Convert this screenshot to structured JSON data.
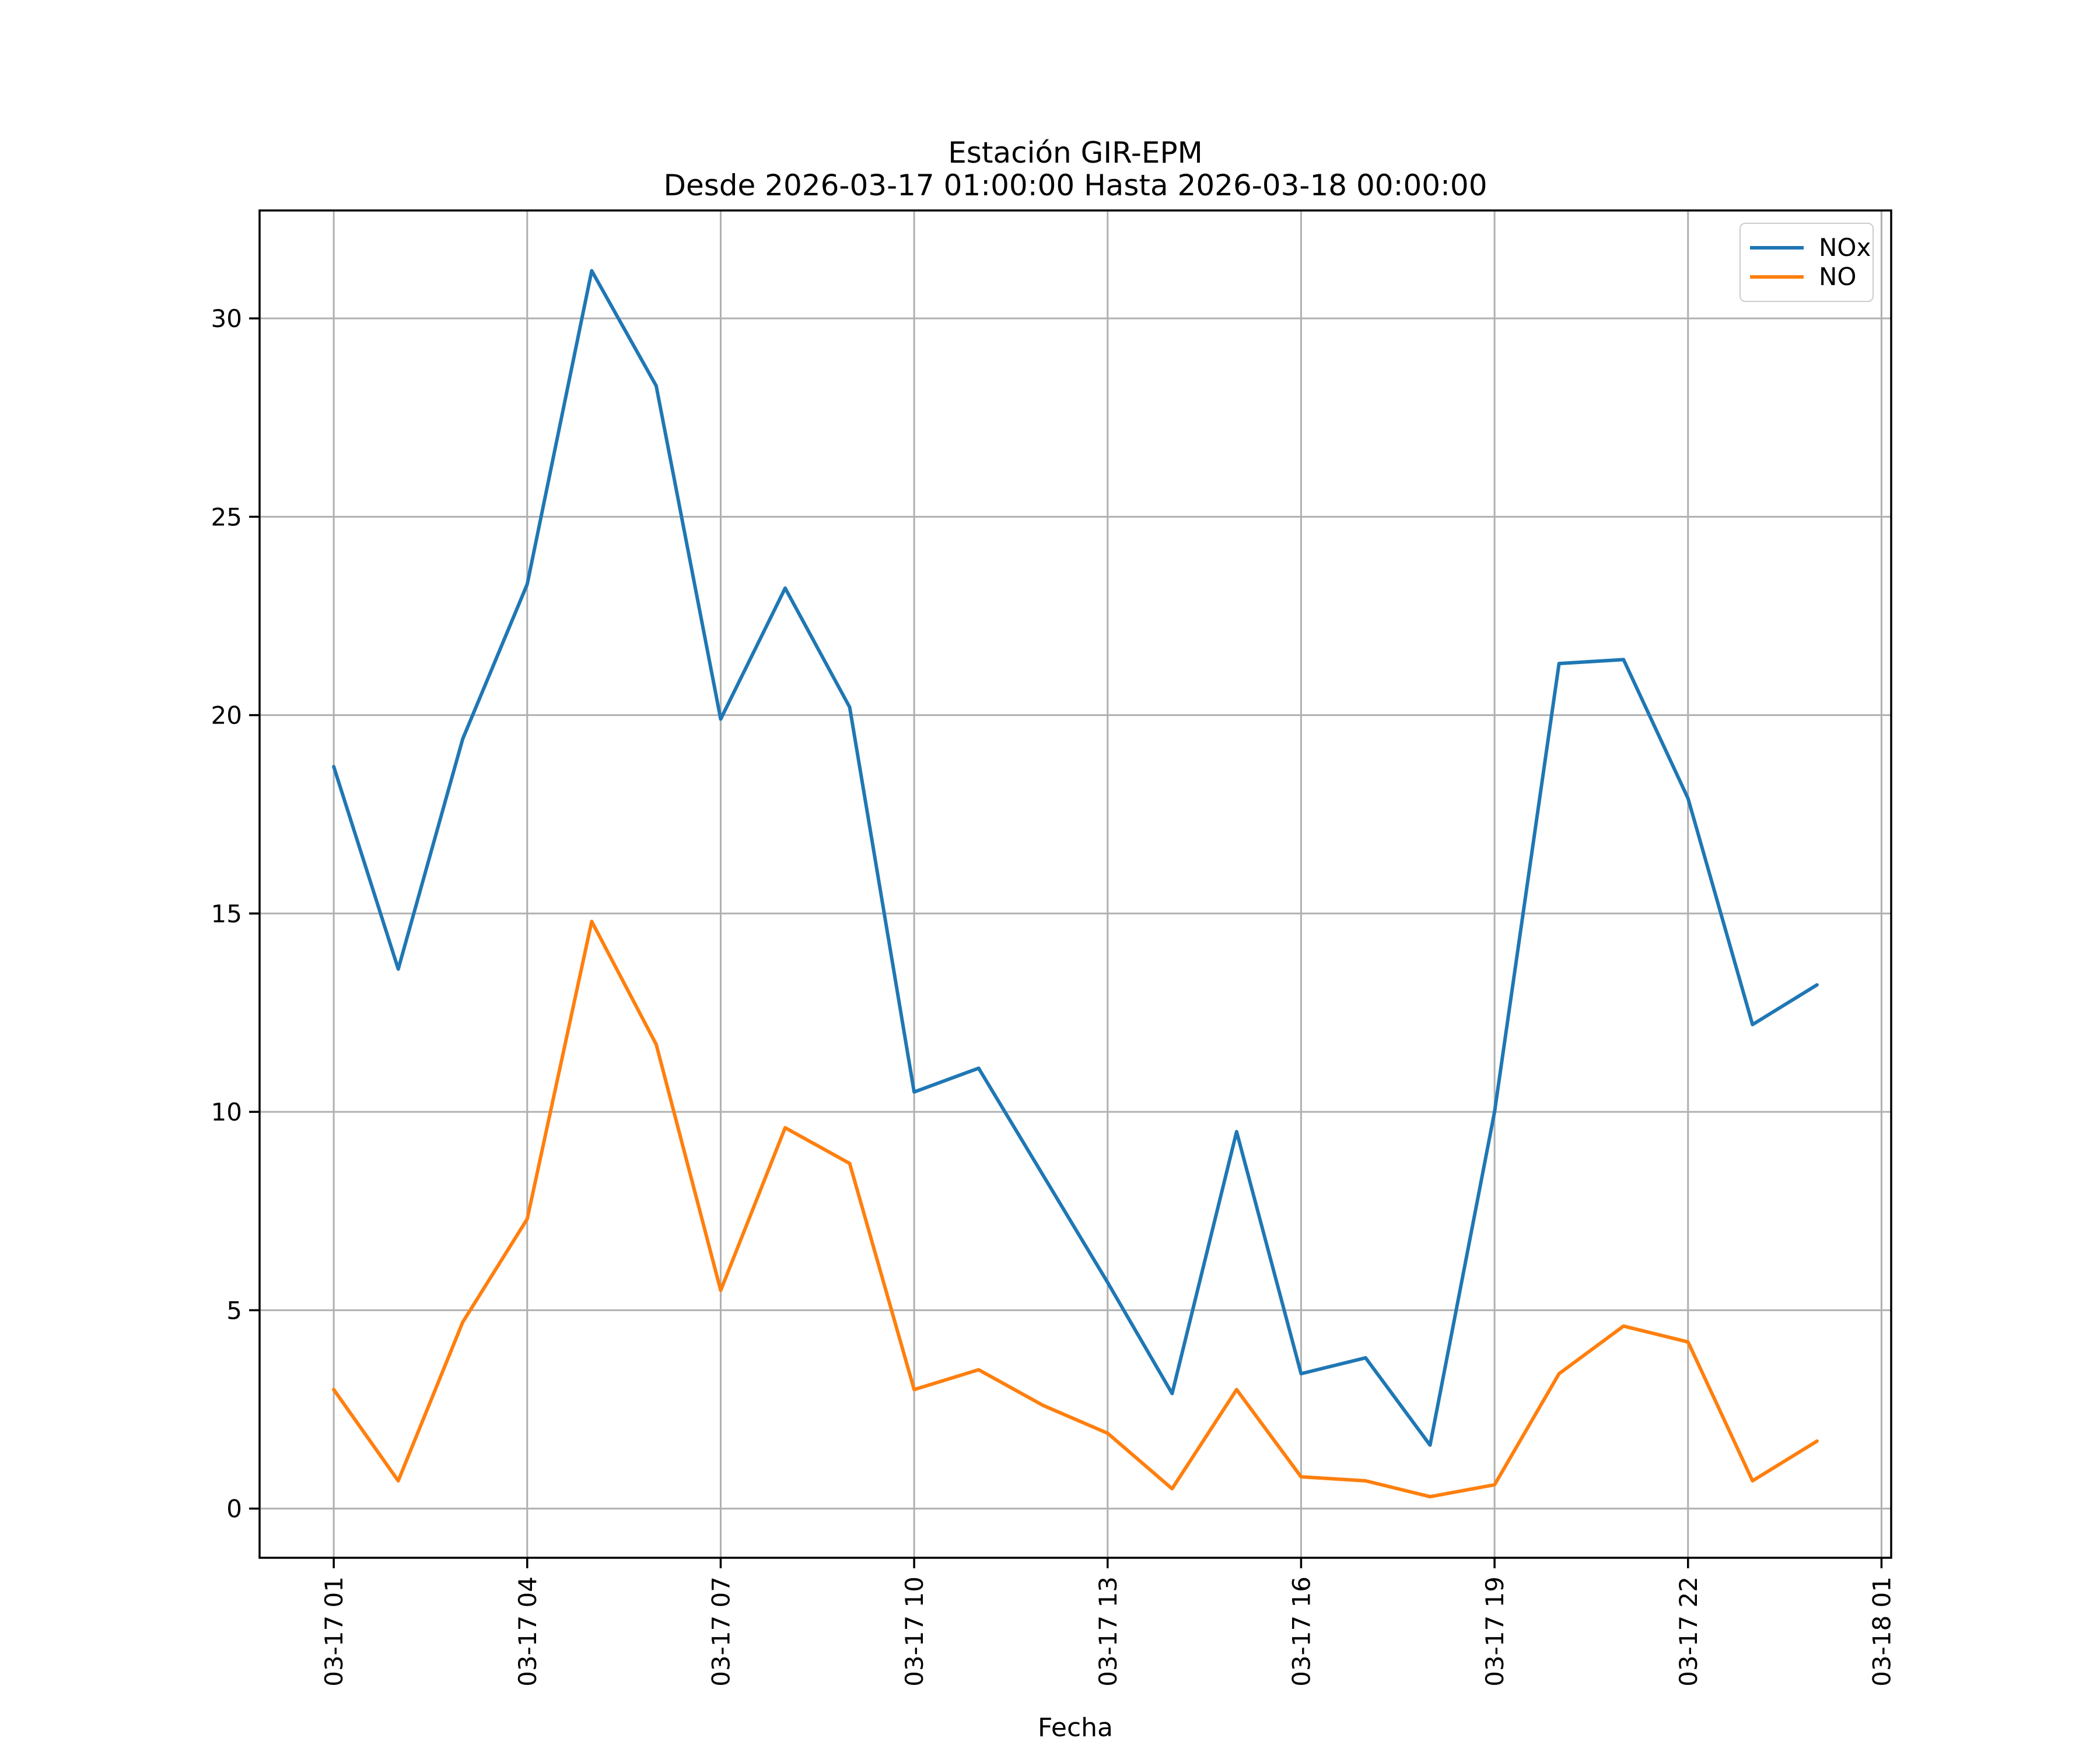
{
  "chart_data": {
    "type": "line",
    "title": "Estación GIR-EPM",
    "subtitle": "Desde 2026-03-17 01:00:00 Hasta 2026-03-18 00:00:00",
    "xlabel": "Fecha",
    "ylabel": "",
    "x": [
      "2026-03-17 01:00",
      "2026-03-17 02:00",
      "2026-03-17 03:00",
      "2026-03-17 04:00",
      "2026-03-17 05:00",
      "2026-03-17 06:00",
      "2026-03-17 07:00",
      "2026-03-17 08:00",
      "2026-03-17 09:00",
      "2026-03-17 10:00",
      "2026-03-17 11:00",
      "2026-03-17 12:00",
      "2026-03-17 13:00",
      "2026-03-17 14:00",
      "2026-03-17 15:00",
      "2026-03-17 16:00",
      "2026-03-17 17:00",
      "2026-03-17 18:00",
      "2026-03-17 19:00",
      "2026-03-17 20:00",
      "2026-03-17 21:00",
      "2026-03-17 22:00",
      "2026-03-17 23:00",
      "2026-03-18 00:00"
    ],
    "series": [
      {
        "name": "NOx",
        "color": "#1f77b4",
        "values": [
          18.7,
          13.6,
          19.4,
          23.3,
          31.2,
          28.3,
          19.9,
          23.2,
          20.2,
          10.5,
          11.1,
          8.4,
          5.7,
          2.9,
          9.5,
          3.4,
          3.8,
          1.6,
          10.0,
          21.3,
          21.4,
          17.9,
          12.2,
          13.2
        ]
      },
      {
        "name": "NO",
        "color": "#ff7f0e",
        "values": [
          3.0,
          0.7,
          4.7,
          7.3,
          14.8,
          11.7,
          5.5,
          9.6,
          8.7,
          3.0,
          3.5,
          2.6,
          1.9,
          0.5,
          3.0,
          0.8,
          0.7,
          0.3,
          0.6,
          3.4,
          4.6,
          4.2,
          0.7,
          1.7
        ]
      }
    ],
    "x_ticks": {
      "hours": [
        1,
        4,
        7,
        10,
        13,
        16,
        19,
        22,
        25
      ],
      "labels": [
        "03-17 01",
        "03-17 04",
        "03-17 07",
        "03-17 10",
        "03-17 13",
        "03-17 16",
        "03-17 19",
        "03-17 22",
        "03-18 01"
      ]
    },
    "y_ticks": [
      "0",
      "5",
      "10",
      "15",
      "20",
      "25",
      "30"
    ],
    "xlim_hours": [
      -0.15,
      25.15
    ],
    "ylim": [
      -1.24,
      32.72
    ],
    "grid": true,
    "grid_color": "#b0b0b0",
    "axis_color": "#000000",
    "legend": {
      "position": "upper right",
      "entries": [
        "NOx",
        "NO"
      ]
    }
  }
}
